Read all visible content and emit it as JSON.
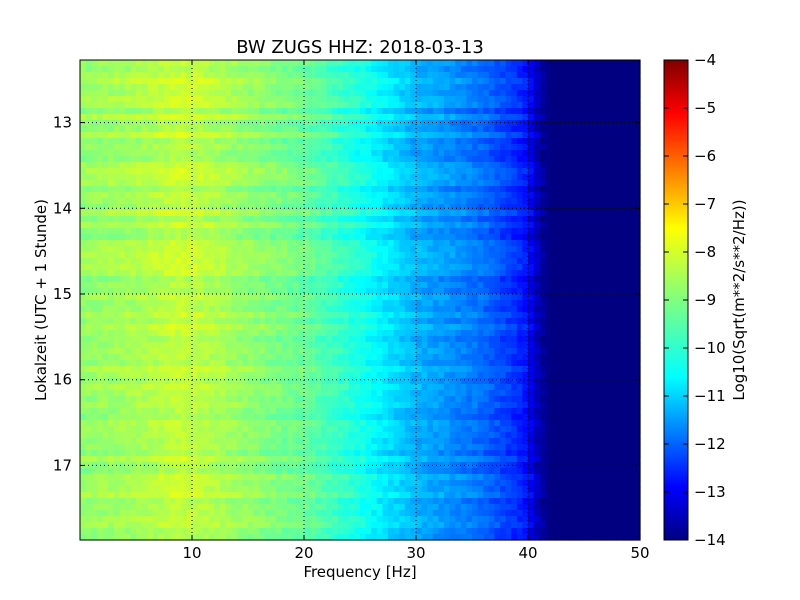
{
  "chart_data": {
    "type": "heatmap",
    "title": "BW ZUGS HHZ: 2018-03-13",
    "xlabel": "Frequency [Hz]",
    "ylabel": "Lokalzeit (UTC + 1 Stunde)",
    "xlim": [
      0,
      50
    ],
    "ylim": [
      12.27,
      17.87
    ],
    "y_inverted": true,
    "xticks": [
      10,
      20,
      30,
      40,
      50
    ],
    "xtick_labels": [
      "10",
      "20",
      "30",
      "40",
      "50"
    ],
    "yticks": [
      13,
      14,
      15,
      16,
      17
    ],
    "ytick_labels": [
      "13",
      "14",
      "15",
      "16",
      "17"
    ],
    "grid": true,
    "colormap": "jet",
    "colorbar": {
      "label": "Log10(Sqrt(m**2/s**2/Hz))",
      "range": [
        -14,
        -4
      ],
      "ticks": [
        -4,
        -5,
        -6,
        -7,
        -8,
        -9,
        -10,
        -11,
        -12,
        -13,
        -14
      ],
      "tick_labels": [
        "−4",
        "−5",
        "−6",
        "−7",
        "−8",
        "−9",
        "−10",
        "−11",
        "−12",
        "−13",
        "−14"
      ]
    },
    "spectrum_profile": {
      "frequency_hz": [
        0,
        5,
        9,
        12,
        15,
        20,
        25,
        28,
        30,
        33,
        36,
        38,
        40,
        41,
        42,
        50
      ],
      "log10_amplitude": [
        -8.8,
        -8.6,
        -8.3,
        -8.5,
        -8.8,
        -9.2,
        -10.0,
        -10.6,
        -11.0,
        -11.3,
        -11.7,
        -12.1,
        -12.6,
        -13.6,
        -14.0,
        -14.0
      ]
    }
  }
}
